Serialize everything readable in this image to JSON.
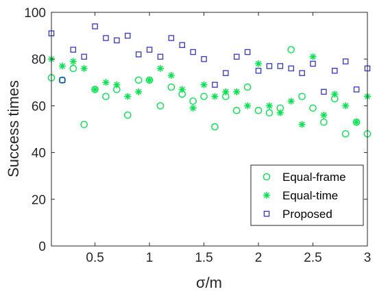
{
  "chart_data": {
    "type": "scatter",
    "xlabel": "σ/m",
    "ylabel": "Success times",
    "xlim": [
      0.1,
      3.0
    ],
    "ylim": [
      0,
      100
    ],
    "xticks": [
      0.5,
      1,
      1.5,
      2,
      2.5,
      3
    ],
    "xtick_labels": [
      "0.5",
      "1",
      "1.5",
      "2",
      "2.5",
      "3"
    ],
    "yticks": [
      0,
      20,
      40,
      60,
      80,
      100
    ],
    "ytick_labels": [
      "0",
      "20",
      "40",
      "60",
      "80",
      "100"
    ],
    "grid": false,
    "legend_position": "bottom-right",
    "series": [
      {
        "name": "Equal-frame",
        "marker": "circle",
        "color": "#00e64d",
        "points": [
          [
            0.1,
            72
          ],
          [
            0.2,
            71
          ],
          [
            0.3,
            76
          ],
          [
            0.4,
            52
          ],
          [
            0.5,
            67
          ],
          [
            0.6,
            64
          ],
          [
            0.7,
            67
          ],
          [
            0.8,
            56
          ],
          [
            0.9,
            71
          ],
          [
            1.0,
            71
          ],
          [
            1.1,
            60
          ],
          [
            1.2,
            68
          ],
          [
            1.3,
            65
          ],
          [
            1.4,
            62
          ],
          [
            1.5,
            64
          ],
          [
            1.6,
            51
          ],
          [
            1.7,
            64
          ],
          [
            1.8,
            58
          ],
          [
            1.9,
            68
          ],
          [
            2.0,
            58
          ],
          [
            2.1,
            57
          ],
          [
            2.2,
            59
          ],
          [
            2.3,
            84
          ],
          [
            2.4,
            64
          ],
          [
            2.5,
            59
          ],
          [
            2.6,
            53
          ],
          [
            2.7,
            63
          ],
          [
            2.8,
            48
          ],
          [
            2.9,
            53
          ],
          [
            3.0,
            48
          ]
        ]
      },
      {
        "name": "Equal-time",
        "marker": "asterisk",
        "color": "#00e64d",
        "points": [
          [
            0.1,
            80
          ],
          [
            0.2,
            77
          ],
          [
            0.3,
            79
          ],
          [
            0.4,
            76
          ],
          [
            0.5,
            67
          ],
          [
            0.6,
            70
          ],
          [
            0.7,
            69
          ],
          [
            0.8,
            64
          ],
          [
            0.9,
            66
          ],
          [
            1.0,
            71
          ],
          [
            1.1,
            76
          ],
          [
            1.2,
            73
          ],
          [
            1.3,
            67
          ],
          [
            1.4,
            59
          ],
          [
            1.5,
            69
          ],
          [
            1.6,
            64
          ],
          [
            1.7,
            66
          ],
          [
            1.8,
            66
          ],
          [
            1.9,
            60
          ],
          [
            2.0,
            78
          ],
          [
            2.1,
            60
          ],
          [
            2.2,
            57
          ],
          [
            2.3,
            62
          ],
          [
            2.4,
            52
          ],
          [
            2.5,
            81
          ],
          [
            2.6,
            56
          ],
          [
            2.7,
            65
          ],
          [
            2.8,
            60
          ],
          [
            2.9,
            53
          ],
          [
            3.0,
            64
          ]
        ]
      },
      {
        "name": "Proposed",
        "marker": "square",
        "color": "#3333cc",
        "points": [
          [
            0.1,
            91
          ],
          [
            0.2,
            71
          ],
          [
            0.3,
            84
          ],
          [
            0.4,
            81
          ],
          [
            0.5,
            94
          ],
          [
            0.6,
            89
          ],
          [
            0.7,
            88
          ],
          [
            0.8,
            90
          ],
          [
            0.9,
            82
          ],
          [
            1.0,
            84
          ],
          [
            1.1,
            81
          ],
          [
            1.2,
            89
          ],
          [
            1.3,
            86
          ],
          [
            1.4,
            83
          ],
          [
            1.5,
            80
          ],
          [
            1.6,
            69
          ],
          [
            1.7,
            74
          ],
          [
            1.8,
            81
          ],
          [
            1.9,
            83
          ],
          [
            2.0,
            75
          ],
          [
            2.1,
            77
          ],
          [
            2.2,
            77
          ],
          [
            2.3,
            76
          ],
          [
            2.4,
            74
          ],
          [
            2.5,
            78
          ],
          [
            2.6,
            66
          ],
          [
            2.7,
            75
          ],
          [
            2.8,
            79
          ],
          [
            2.9,
            67
          ],
          [
            3.0,
            76
          ]
        ]
      }
    ]
  }
}
